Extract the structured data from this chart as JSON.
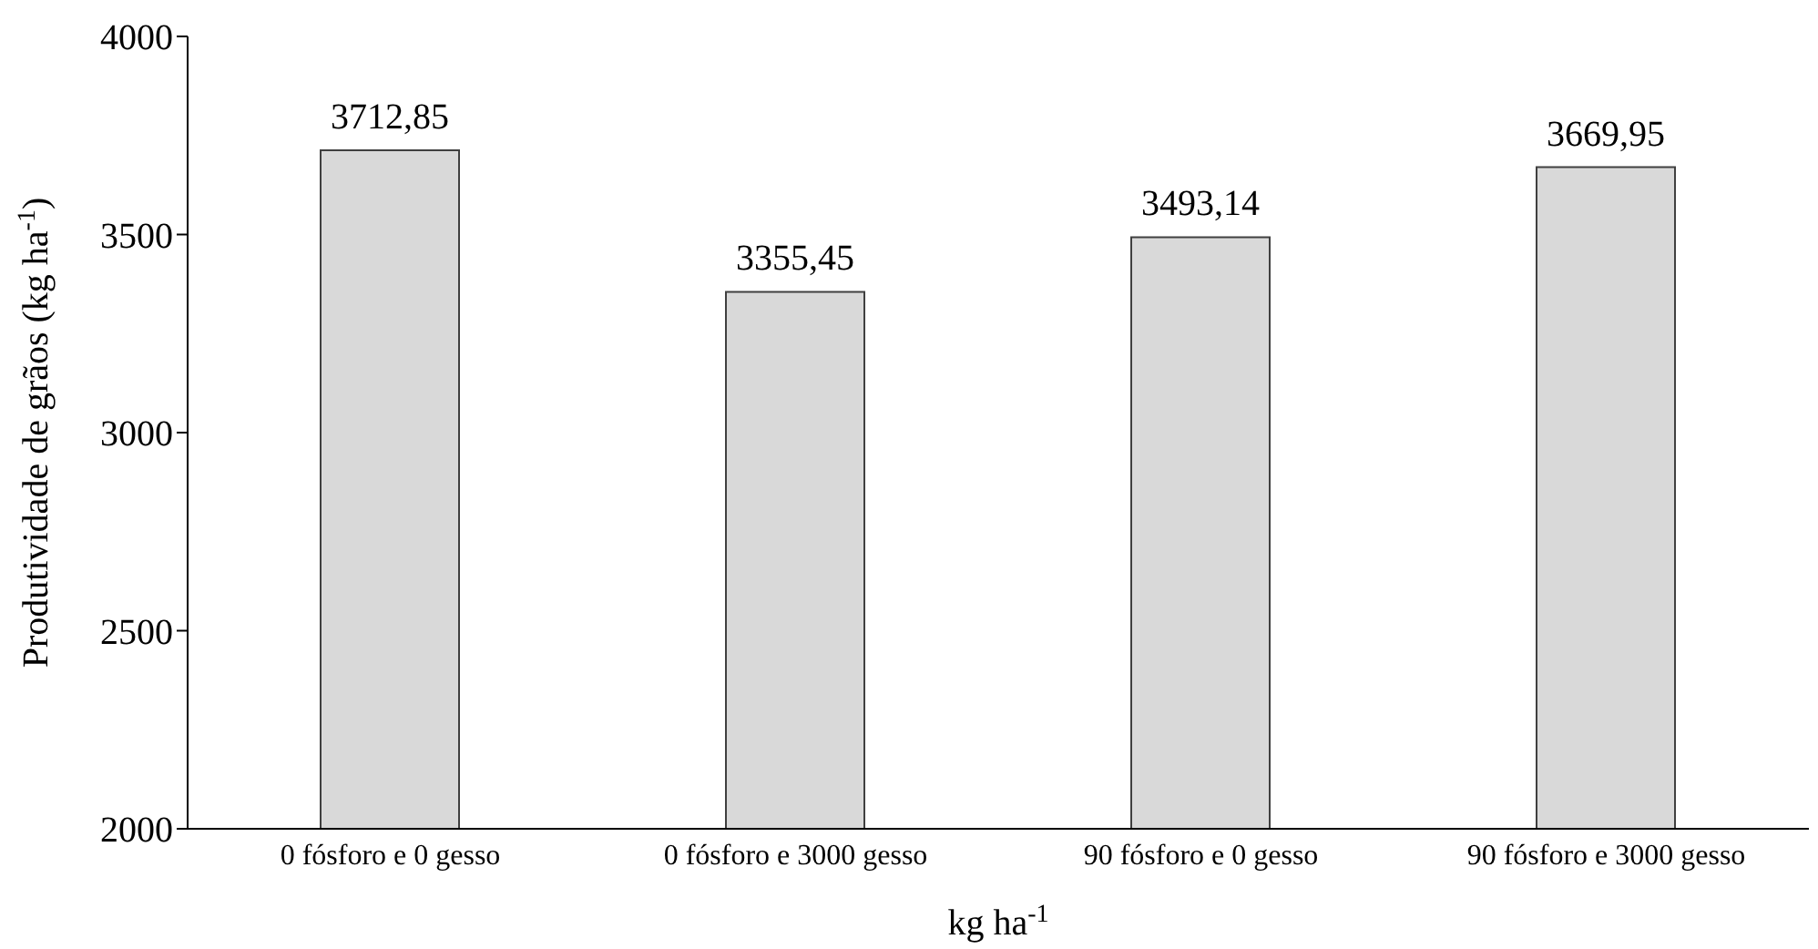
{
  "chart_data": {
    "type": "bar",
    "xlabel": "kg ha$^{-1}$",
    "ylabel": "Produtividade de grãos (kg ha$^{-1}$)",
    "categories": [
      "0 fósforo e 0 gesso",
      "0 fósforo e 3000 gesso",
      "90 fósforo e 0 gesso",
      "90 fósforo e 3000 gesso"
    ],
    "values": [
      3712.85,
      3355.45,
      3493.14,
      3669.95
    ],
    "value_labels": [
      "3712,85",
      "3355,45",
      "3493,14",
      "3669,95"
    ],
    "color": "#d9d9d9",
    "ylim": [
      2000,
      4000
    ],
    "yticks": [
      2000,
      2500,
      3000,
      3500,
      4000
    ],
    "grid": false,
    "legend": false
  }
}
